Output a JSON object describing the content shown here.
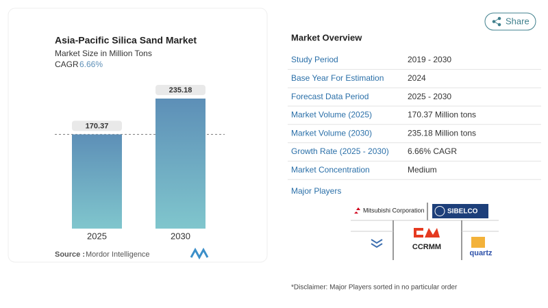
{
  "chart_data": {
    "type": "bar",
    "title": "Asia-Pacific Silica Sand Market",
    "subtitle": "Market Size in Million Tons",
    "cagr_label": "CAGR",
    "cagr_value": "6.66%",
    "categories": [
      "2025",
      "2030"
    ],
    "values": [
      170.37,
      235.18
    ],
    "source_label": "Source :",
    "source": "Mordor Intelligence"
  },
  "share": "Share",
  "overview": {
    "title": "Market Overview",
    "rows": [
      [
        "Study Period",
        "2019 - 2030"
      ],
      [
        "Base Year For Estimation",
        "2024"
      ],
      [
        "Forecast Data Period",
        "2025 - 2030"
      ],
      [
        "Market Volume (2025)",
        "170.37 Million tons"
      ],
      [
        "Market Volume (2030)",
        "235.18 Million tons"
      ],
      [
        "Growth Rate (2025 - 2030)",
        "6.66% CAGR"
      ],
      [
        "Market Concentration",
        "Medium"
      ]
    ]
  },
  "players": {
    "title": "Major Players",
    "logos": [
      "Mitsubishi Corporation",
      "SIBELCO",
      "CCRMM",
      "quartz"
    ]
  },
  "disclaimer": "*Disclaimer: Major Players sorted in no particular order"
}
